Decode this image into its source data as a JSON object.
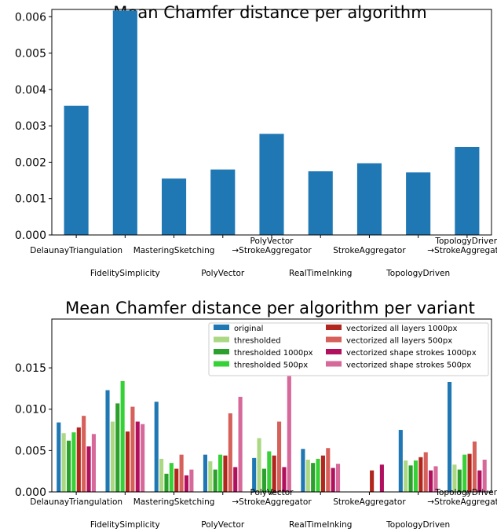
{
  "chart_data": [
    {
      "type": "bar",
      "title": "Mean Chamfer distance per algorithm",
      "xlabel": "",
      "ylabel": "",
      "ylim": [
        0,
        0.0062
      ],
      "yticks": [
        "0.000",
        "0.001",
        "0.002",
        "0.003",
        "0.004",
        "0.005",
        "0.006"
      ],
      "grid": false,
      "color": "#1f77b4",
      "categories": [
        [
          "DelaunayTriangulation"
        ],
        [
          "FidelitySimplicity"
        ],
        [
          "MasteringSketching"
        ],
        [
          "PolyVector"
        ],
        [
          "PolyVector",
          "→StrokeAggregator"
        ],
        [
          "RealTimeInking"
        ],
        [
          "StrokeAggregator"
        ],
        [
          "TopologyDriven"
        ],
        [
          "TopologyDriven",
          "→StrokeAggregator"
        ]
      ],
      "values": [
        0.00355,
        0.00617,
        0.00155,
        0.0018,
        0.00278,
        0.00175,
        0.00197,
        0.00172,
        0.00242
      ]
    },
    {
      "type": "bar",
      "title": "Mean Chamfer distance per algorithm per variant",
      "xlabel": "",
      "ylabel": "",
      "ylim": [
        0,
        0.0209
      ],
      "yticks": [
        "0.000",
        "0.005",
        "0.010",
        "0.015"
      ],
      "grid": false,
      "legend_position": "top-right",
      "categories": [
        [
          "DelaunayTriangulation"
        ],
        [
          "FidelitySimplicity"
        ],
        [
          "MasteringSketching"
        ],
        [
          "PolyVector"
        ],
        [
          "PolyVector",
          "→StrokeAggregator"
        ],
        [
          "RealTimeInking"
        ],
        [
          "StrokeAggregator"
        ],
        [
          "TopologyDriven"
        ],
        [
          "TopologyDriven",
          "→StrokeAggregator"
        ]
      ],
      "series": [
        {
          "name": "original",
          "color": "#1f77b4",
          "values": [
            0.0084,
            0.0123,
            0.0109,
            0.0045,
            0.0041,
            0.0052,
            null,
            0.0075,
            0.0133
          ]
        },
        {
          "name": "thresholded",
          "color": "#acd884",
          "values": [
            0.0071,
            0.0085,
            0.004,
            0.0037,
            0.0065,
            0.0039,
            null,
            0.0038,
            0.0033
          ]
        },
        {
          "name": "thresholded 1000px",
          "color": "#2ca02c",
          "values": [
            0.0062,
            0.0107,
            0.0022,
            0.0027,
            0.0028,
            0.0035,
            null,
            0.0032,
            0.0027
          ]
        },
        {
          "name": "thresholded 500px",
          "color": "#36d136",
          "values": [
            0.0072,
            0.0134,
            0.0035,
            0.0045,
            0.0049,
            0.004,
            null,
            0.0038,
            0.0045
          ]
        },
        {
          "name": "vectorized all layers 1000px",
          "color": "#b1271d",
          "values": [
            0.0078,
            0.0073,
            0.0028,
            0.0044,
            0.0044,
            0.0044,
            0.0026,
            0.0042,
            0.0046
          ]
        },
        {
          "name": "vectorized all layers 500px",
          "color": "#d6605a",
          "values": [
            0.0092,
            0.0103,
            0.0045,
            0.0095,
            0.0085,
            0.0053,
            null,
            0.0048,
            0.0061
          ]
        },
        {
          "name": "vectorized shape strokes 1000px",
          "color": "#b0105e",
          "values": [
            0.0055,
            0.0085,
            0.002,
            0.003,
            0.003,
            0.0029,
            0.0033,
            0.0026,
            0.0026
          ]
        },
        {
          "name": "vectorized shape strokes 500px",
          "color": "#d6689a",
          "values": [
            0.007,
            0.0082,
            0.0027,
            0.0115,
            0.014,
            0.0034,
            null,
            0.0031,
            0.0039
          ]
        }
      ]
    }
  ]
}
